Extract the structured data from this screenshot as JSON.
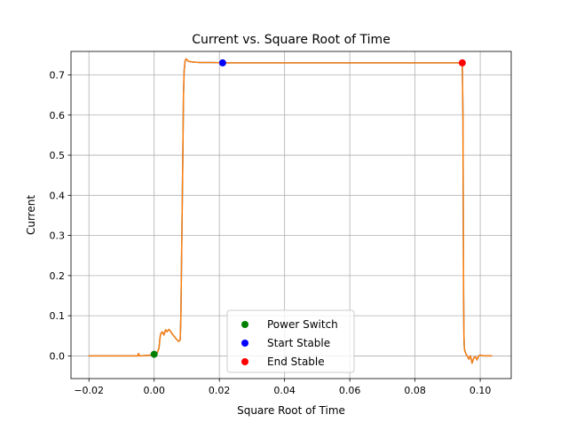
{
  "chart_data": {
    "type": "line",
    "title": "Current vs. Square Root of Time",
    "xlabel": "Square Root of Time",
    "ylabel": "Current",
    "xlim": [
      -0.0255,
      0.1095
    ],
    "ylim": [
      -0.0565,
      0.7585
    ],
    "x_ticks": [
      -0.02,
      0.0,
      0.02,
      0.04,
      0.06,
      0.08,
      0.1
    ],
    "x_tick_labels": [
      "−0.02",
      "0.00",
      "0.02",
      "0.04",
      "0.06",
      "0.08",
      "0.10"
    ],
    "y_ticks": [
      0.0,
      0.1,
      0.2,
      0.3,
      0.4,
      0.5,
      0.6,
      0.7
    ],
    "y_tick_labels": [
      "0.0",
      "0.1",
      "0.2",
      "0.3",
      "0.4",
      "0.5",
      "0.6",
      "0.7"
    ],
    "grid": true,
    "legend_placement": "bottom-center",
    "series": [
      {
        "color": "#1f77b4",
        "x": [
          -0.02,
          -0.005,
          -0.0048,
          -0.0045,
          -0.004,
          -0.001,
          0.0,
          0.0005,
          0.001,
          0.0015,
          0.0018,
          0.002,
          0.0025,
          0.003,
          0.0035,
          0.004,
          0.0045,
          0.005,
          0.0055,
          0.006,
          0.0065,
          0.007,
          0.0075,
          0.008,
          0.0082,
          0.0085,
          0.0088,
          0.009,
          0.0092,
          0.0095,
          0.0098,
          0.01,
          0.0105,
          0.011,
          0.012,
          0.014,
          0.018,
          0.021,
          0.03,
          0.04,
          0.05,
          0.06,
          0.07,
          0.08,
          0.09,
          0.0945,
          0.0947,
          0.0948,
          0.0949,
          0.095,
          0.0951,
          0.0952,
          0.0954,
          0.0956,
          0.0958,
          0.096,
          0.0965,
          0.097,
          0.0975,
          0.098,
          0.0985,
          0.099,
          0.0995,
          0.1,
          0.101,
          0.102,
          0.1035
        ],
        "y": [
          0.0,
          0.0,
          0.006,
          0.0,
          0.0,
          0.002,
          0.003,
          0.004,
          0.008,
          0.02,
          0.045,
          0.055,
          0.06,
          0.052,
          0.065,
          0.06,
          0.066,
          0.062,
          0.055,
          0.05,
          0.045,
          0.04,
          0.036,
          0.04,
          0.1,
          0.3,
          0.5,
          0.65,
          0.71,
          0.735,
          0.74,
          0.738,
          0.734,
          0.733,
          0.732,
          0.731,
          0.731,
          0.73,
          0.73,
          0.73,
          0.73,
          0.73,
          0.73,
          0.73,
          0.73,
          0.73,
          0.6,
          0.35,
          0.15,
          0.05,
          0.025,
          0.015,
          0.01,
          0.005,
          0.002,
          0.0,
          -0.008,
          0.0,
          -0.018,
          -0.005,
          -0.002,
          -0.01,
          0.0,
          0.002,
          0.0,
          0.0,
          0.0
        ]
      },
      {
        "color": "#ff7f0e",
        "x": [
          -0.02,
          -0.005,
          -0.0048,
          -0.0045,
          -0.004,
          -0.001,
          0.0,
          0.0005,
          0.001,
          0.0015,
          0.0018,
          0.002,
          0.0025,
          0.003,
          0.0035,
          0.004,
          0.0045,
          0.005,
          0.0055,
          0.006,
          0.0065,
          0.007,
          0.0075,
          0.008,
          0.0082,
          0.0085,
          0.0088,
          0.009,
          0.0092,
          0.0095,
          0.0098,
          0.01,
          0.0105,
          0.011,
          0.012,
          0.014,
          0.018,
          0.021,
          0.03,
          0.04,
          0.05,
          0.06,
          0.07,
          0.08,
          0.09,
          0.0945,
          0.0947,
          0.0948,
          0.0949,
          0.095,
          0.0951,
          0.0952,
          0.0954,
          0.0956,
          0.0958,
          0.096,
          0.0965,
          0.097,
          0.0975,
          0.098,
          0.0985,
          0.099,
          0.0995,
          0.1,
          0.101,
          0.102,
          0.1035
        ],
        "y": [
          0.0,
          0.0,
          0.006,
          0.0,
          0.0,
          0.002,
          0.003,
          0.004,
          0.008,
          0.02,
          0.045,
          0.055,
          0.06,
          0.052,
          0.065,
          0.06,
          0.066,
          0.062,
          0.055,
          0.05,
          0.045,
          0.04,
          0.036,
          0.04,
          0.1,
          0.3,
          0.5,
          0.65,
          0.71,
          0.735,
          0.74,
          0.738,
          0.734,
          0.733,
          0.732,
          0.731,
          0.731,
          0.73,
          0.73,
          0.73,
          0.73,
          0.73,
          0.73,
          0.73,
          0.73,
          0.73,
          0.6,
          0.35,
          0.15,
          0.05,
          0.025,
          0.015,
          0.01,
          0.005,
          0.002,
          0.0,
          -0.008,
          0.0,
          -0.018,
          -0.005,
          -0.002,
          -0.01,
          0.0,
          0.002,
          0.0,
          0.0,
          0.0
        ]
      }
    ],
    "markers": [
      {
        "name": "Power Switch",
        "x": 0.0,
        "y": 0.004,
        "color": "#008000"
      },
      {
        "name": "Start Stable",
        "x": 0.021,
        "y": 0.73,
        "color": "#0000ff"
      },
      {
        "name": "End Stable",
        "x": 0.0945,
        "y": 0.73,
        "color": "#ff0000"
      }
    ]
  }
}
